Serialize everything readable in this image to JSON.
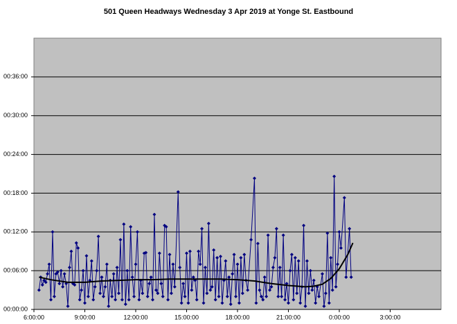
{
  "chart_data": {
    "type": "line",
    "title": "501 Queen Headways Wednesday 3 Apr 2019 at Yonge St. Eastbound",
    "xlim": [
      6,
      30
    ],
    "xticks": [
      {
        "value": 6,
        "label": "6:00:00"
      },
      {
        "value": 9,
        "label": "9:00:00"
      },
      {
        "value": 12,
        "label": "12:00:00"
      },
      {
        "value": 15,
        "label": "15:00:00"
      },
      {
        "value": 18,
        "label": "18:00:00"
      },
      {
        "value": 21,
        "label": "21:00:00"
      },
      {
        "value": 24,
        "label": "0:00:00"
      },
      {
        "value": 27,
        "label": "3:00:00"
      }
    ],
    "ylim": [
      0,
      42
    ],
    "yticks": [
      {
        "value": 0,
        "label": "00:00:00"
      },
      {
        "value": 6,
        "label": "00:06:00"
      },
      {
        "value": 12,
        "label": "00:12:00"
      },
      {
        "value": 18,
        "label": "00:18:00"
      },
      {
        "value": 24,
        "label": "00:24:00"
      },
      {
        "value": 30,
        "label": "00:30:00"
      },
      {
        "value": 36,
        "label": "00:36:00"
      }
    ],
    "grid": true,
    "series": [
      {
        "color": "#000080",
        "markers": true,
        "x": [
          6.3,
          6.4,
          6.5,
          6.6,
          6.7,
          6.8,
          6.9,
          7.0,
          7.1,
          7.2,
          7.3,
          7.4,
          7.5,
          7.6,
          7.7,
          7.8,
          7.9,
          8.0,
          8.1,
          8.2,
          8.3,
          8.4,
          8.5,
          8.6,
          8.7,
          8.8,
          8.9,
          9.0,
          9.1,
          9.2,
          9.3,
          9.4,
          9.5,
          9.6,
          9.7,
          9.8,
          9.9,
          10.0,
          10.1,
          10.2,
          10.3,
          10.4,
          10.5,
          10.6,
          10.7,
          10.8,
          10.9,
          11.0,
          11.1,
          11.2,
          11.3,
          11.4,
          11.5,
          11.6,
          11.7,
          11.8,
          11.9,
          12.0,
          12.1,
          12.2,
          12.3,
          12.4,
          12.5,
          12.6,
          12.7,
          12.8,
          12.9,
          13.0,
          13.1,
          13.2,
          13.3,
          13.4,
          13.5,
          13.6,
          13.7,
          13.8,
          13.9,
          14.0,
          14.1,
          14.2,
          14.3,
          14.5,
          14.6,
          14.7,
          14.8,
          14.9,
          15.0,
          15.1,
          15.2,
          15.3,
          15.4,
          15.5,
          15.6,
          15.7,
          15.8,
          15.9,
          16.0,
          16.1,
          16.2,
          16.3,
          16.4,
          16.5,
          16.6,
          16.7,
          16.8,
          16.9,
          17.0,
          17.1,
          17.2,
          17.3,
          17.4,
          17.5,
          17.6,
          17.7,
          17.8,
          17.9,
          18.0,
          18.1,
          18.2,
          18.3,
          18.4,
          18.5,
          18.6,
          18.8,
          19.0,
          19.1,
          19.2,
          19.3,
          19.4,
          19.5,
          19.6,
          19.7,
          19.8,
          19.9,
          20.0,
          20.1,
          20.2,
          20.3,
          20.4,
          20.5,
          20.6,
          20.7,
          20.8,
          20.9,
          21.0,
          21.1,
          21.2,
          21.3,
          21.4,
          21.5,
          21.6,
          21.7,
          21.8,
          21.9,
          22.0,
          22.1,
          22.2,
          22.3,
          22.4,
          22.5,
          22.6,
          22.7,
          22.8,
          23.0,
          23.1,
          23.2,
          23.3,
          23.4,
          23.5,
          23.6,
          23.7,
          23.8,
          23.9,
          24.0,
          24.1,
          24.3,
          24.4,
          24.6,
          24.7
        ],
        "values": [
          3.0,
          5.0,
          3.8,
          4.5,
          4.2,
          5.5,
          7.0,
          1.5,
          12.0,
          2.0,
          5.5,
          5.8,
          4.0,
          6.0,
          3.5,
          5.5,
          4.0,
          0.5,
          6.5,
          9.0,
          4.0,
          3.8,
          10.3,
          9.5,
          1.5,
          3.0,
          6.0,
          1.0,
          8.3,
          2.0,
          4.5,
          7.5,
          1.5,
          3.5,
          6.0,
          11.3,
          2.5,
          5.0,
          2.0,
          3.5,
          7.0,
          0.5,
          4.5,
          2.0,
          5.5,
          1.5,
          6.5,
          2.5,
          10.8,
          1.5,
          13.2,
          0.8,
          6.0,
          1.5,
          12.8,
          5.0,
          2.0,
          7.0,
          12.0,
          1.5,
          4.5,
          2.5,
          8.7,
          8.8,
          2.0,
          4.0,
          5.0,
          1.5,
          14.7,
          3.0,
          2.5,
          8.7,
          4.0,
          2.0,
          13.0,
          12.8,
          1.5,
          8.5,
          2.5,
          7.0,
          3.5,
          18.2,
          6.5,
          1.0,
          4.0,
          2.0,
          8.7,
          1.0,
          9.0,
          3.0,
          5.0,
          4.5,
          1.5,
          9.0,
          7.0,
          12.5,
          1.0,
          6.5,
          2.5,
          13.3,
          3.0,
          3.5,
          9.2,
          1.5,
          8.0,
          2.0,
          8.2,
          1.0,
          4.5,
          7.5,
          2.0,
          5.0,
          0.8,
          5.5,
          8.5,
          2.0,
          7.0,
          1.0,
          8.0,
          2.5,
          8.5,
          4.5,
          3.0,
          10.8,
          20.3,
          1.0,
          10.2,
          3.0,
          2.0,
          1.5,
          5.0,
          2.0,
          11.5,
          3.0,
          3.5,
          6.5,
          8.0,
          12.5,
          2.0,
          6.5,
          2.0,
          11.5,
          1.5,
          4.0,
          1.0,
          6.0,
          8.5,
          1.5,
          8.0,
          2.5,
          7.5,
          1.0,
          3.5,
          13.0,
          0.5,
          7.5,
          2.5,
          6.0,
          3.0,
          4.5,
          1.0,
          3.5,
          2.0,
          5.5,
          0.5,
          2.5,
          11.8,
          1.0,
          8.0,
          3.0,
          20.6,
          3.5,
          7.0,
          12.0,
          9.5,
          17.3,
          5.0,
          12.5,
          5.0
        ]
      },
      {
        "color": "#000000",
        "markers": false,
        "x": [
          6.3,
          7,
          8,
          9,
          10,
          11,
          12,
          13,
          14,
          15,
          16,
          17,
          18,
          19,
          20,
          21,
          22,
          22.5,
          23,
          23.5,
          24,
          24.5,
          24.8
        ],
        "values": [
          5.0,
          4.6,
          4.2,
          4.2,
          4.4,
          4.5,
          4.6,
          4.6,
          4.7,
          4.7,
          4.7,
          4.7,
          4.6,
          4.4,
          4.0,
          3.7,
          3.5,
          3.6,
          3.9,
          4.8,
          6.3,
          8.5,
          10.3
        ]
      }
    ]
  }
}
